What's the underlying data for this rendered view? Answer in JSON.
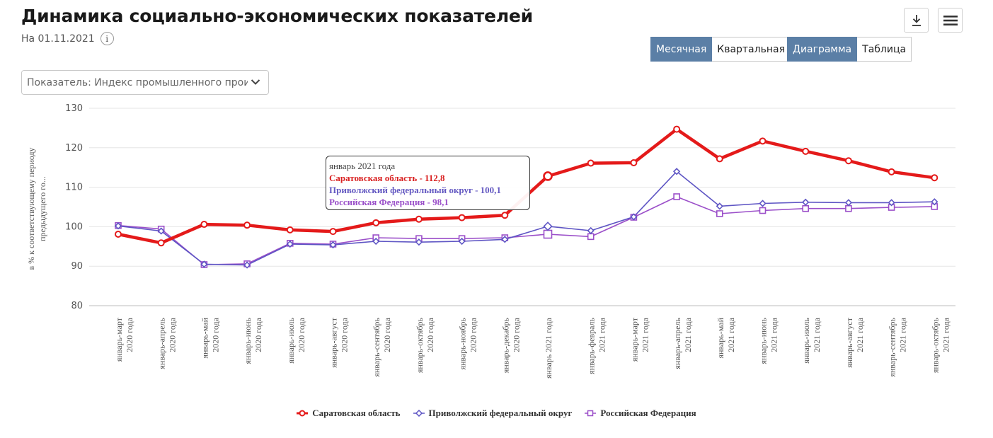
{
  "header": {
    "title": "Динамика социально-экономических показателей",
    "date_label": "На 01.11.2021",
    "info_glyph": "i"
  },
  "controls": {
    "period_tabs": [
      {
        "label": "Месячная",
        "active": true
      },
      {
        "label": "Квартальная",
        "active": false
      }
    ],
    "view_tabs": [
      {
        "label": "Диаграмма",
        "active": true
      },
      {
        "label": "Таблица",
        "active": false
      }
    ],
    "indicator_select": {
      "value": "Показатель: Индекс промышленного произв"
    },
    "icons": {
      "download": "download-icon",
      "menu": "menu-icon",
      "chevron": "chevron-down-icon"
    }
  },
  "tooltip": {
    "header": "январь 2021 года",
    "rows": [
      {
        "text": "Саратовская область - 112,8",
        "color": "#d92121"
      },
      {
        "text": "Приволжский федеральный округ - 100,1",
        "color": "#6459c2"
      },
      {
        "text": "Российская Федерация - 98,1",
        "color": "#9a4fc9"
      }
    ]
  },
  "chart_data": {
    "type": "line",
    "ylabel": "в % к соответствующему периоду предыдущего го...",
    "ylim": [
      80,
      130
    ],
    "yticks": [
      80,
      90,
      100,
      110,
      120,
      130
    ],
    "grid": true,
    "legend_position": "bottom",
    "categories": [
      [
        "январь-март",
        "2020 года"
      ],
      [
        "январь-апрель",
        "2020 года"
      ],
      [
        "январь-май",
        "2020 года"
      ],
      [
        "январь-июнь",
        "2020 года"
      ],
      [
        "январь-июль",
        "2020 года"
      ],
      [
        "январь-август",
        "2020 года"
      ],
      [
        "январь-сентябрь",
        "2020 года"
      ],
      [
        "январь-октябрь",
        "2020 года"
      ],
      [
        "январь-ноябрь",
        "2020 года"
      ],
      [
        "январь-декабрь",
        "2020 года"
      ],
      [
        "январь 2021 года"
      ],
      [
        "январь-февраль",
        "2021 года"
      ],
      [
        "январь-март",
        "2021 года"
      ],
      [
        "январь-апрель",
        "2021 года"
      ],
      [
        "январь-май",
        "2021 года"
      ],
      [
        "январь-июнь",
        "2021 года"
      ],
      [
        "январь-июль",
        "2021 года"
      ],
      [
        "январь-август",
        "2021 года"
      ],
      [
        "январь-сентябрь",
        "2021 года"
      ],
      [
        "январь-октябрь",
        "2021 года"
      ]
    ],
    "highlight_index": 10,
    "series": [
      {
        "name": "Саратовская область",
        "color": "#e41a1a",
        "marker": "circle",
        "values": [
          98.1,
          95.9,
          100.6,
          100.4,
          99.2,
          98.8,
          101.0,
          101.9,
          102.3,
          102.9,
          112.8,
          116.1,
          116.2,
          124.7,
          117.2,
          121.7,
          119.1,
          116.7,
          113.9,
          112.4
        ]
      },
      {
        "name": "Приволжский федеральный округ",
        "color": "#5e55c4",
        "marker": "diamond",
        "values": [
          100.2,
          98.9,
          90.5,
          90.3,
          95.6,
          95.4,
          96.3,
          96.1,
          96.3,
          96.8,
          100.1,
          99.0,
          102.5,
          114.0,
          105.2,
          105.9,
          106.2,
          106.1,
          106.1,
          106.3
        ]
      },
      {
        "name": "Российская Федерация",
        "color": "#9b4fc9",
        "marker": "square",
        "values": [
          100.3,
          99.4,
          90.4,
          90.6,
          95.8,
          95.6,
          97.2,
          97.0,
          97.0,
          97.2,
          98.1,
          97.5,
          102.4,
          107.6,
          103.3,
          104.1,
          104.6,
          104.6,
          104.9,
          105.1
        ]
      }
    ]
  }
}
